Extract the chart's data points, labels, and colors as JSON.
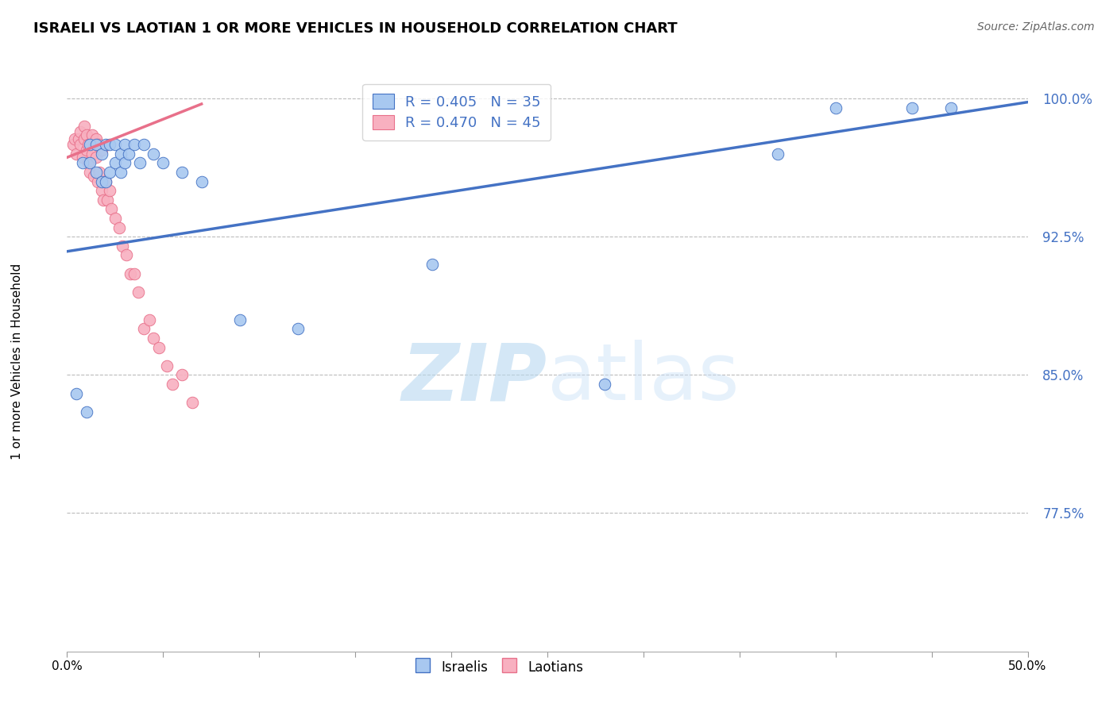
{
  "title": "ISRAELI VS LAOTIAN 1 OR MORE VEHICLES IN HOUSEHOLD CORRELATION CHART",
  "source": "Source: ZipAtlas.com",
  "ylabel": "1 or more Vehicles in Household",
  "xmin": 0.0,
  "xmax": 0.5,
  "ymin": 0.7,
  "ymax": 1.015,
  "yticks": [
    0.775,
    0.85,
    0.925,
    1.0
  ],
  "ytick_labels": [
    "77.5%",
    "85.0%",
    "92.5%",
    "100.0%"
  ],
  "xticks": [
    0.0,
    0.05,
    0.1,
    0.15,
    0.2,
    0.25,
    0.3,
    0.35,
    0.4,
    0.45,
    0.5
  ],
  "xtick_labels": [
    "0.0%",
    "",
    "",
    "",
    "",
    "",
    "",
    "",
    "",
    "",
    "50.0%"
  ],
  "watermark_zip": "ZIP",
  "watermark_atlas": "atlas",
  "legend_R_blue": "R = 0.405",
  "legend_N_blue": "N = 35",
  "legend_R_pink": "R = 0.470",
  "legend_N_pink": "N = 45",
  "blue_scatter_color": "#A8C8F0",
  "pink_scatter_color": "#F8B0C0",
  "line_blue": "#4472C4",
  "line_pink": "#E8708A",
  "israelis_x": [
    0.005,
    0.008,
    0.01,
    0.012,
    0.012,
    0.015,
    0.015,
    0.018,
    0.018,
    0.02,
    0.02,
    0.022,
    0.022,
    0.025,
    0.025,
    0.028,
    0.028,
    0.03,
    0.03,
    0.032,
    0.035,
    0.038,
    0.04,
    0.045,
    0.05,
    0.06,
    0.07,
    0.09,
    0.12,
    0.19,
    0.28,
    0.37,
    0.4,
    0.44,
    0.46
  ],
  "israelis_y": [
    0.84,
    0.965,
    0.83,
    0.965,
    0.975,
    0.96,
    0.975,
    0.955,
    0.97,
    0.955,
    0.975,
    0.96,
    0.975,
    0.965,
    0.975,
    0.96,
    0.97,
    0.965,
    0.975,
    0.97,
    0.975,
    0.965,
    0.975,
    0.97,
    0.965,
    0.96,
    0.955,
    0.88,
    0.875,
    0.91,
    0.845,
    0.97,
    0.995,
    0.995,
    0.995
  ],
  "laotians_x": [
    0.003,
    0.004,
    0.005,
    0.006,
    0.007,
    0.007,
    0.008,
    0.009,
    0.009,
    0.01,
    0.01,
    0.011,
    0.011,
    0.012,
    0.013,
    0.013,
    0.014,
    0.015,
    0.015,
    0.016,
    0.016,
    0.017,
    0.017,
    0.018,
    0.018,
    0.019,
    0.02,
    0.021,
    0.022,
    0.023,
    0.025,
    0.027,
    0.029,
    0.031,
    0.033,
    0.035,
    0.037,
    0.04,
    0.043,
    0.045,
    0.048,
    0.052,
    0.055,
    0.06,
    0.065
  ],
  "laotians_y": [
    0.975,
    0.978,
    0.97,
    0.978,
    0.975,
    0.982,
    0.968,
    0.978,
    0.985,
    0.972,
    0.98,
    0.965,
    0.975,
    0.96,
    0.97,
    0.98,
    0.958,
    0.968,
    0.978,
    0.955,
    0.975,
    0.96,
    0.975,
    0.95,
    0.972,
    0.945,
    0.955,
    0.945,
    0.95,
    0.94,
    0.935,
    0.93,
    0.92,
    0.915,
    0.905,
    0.905,
    0.895,
    0.875,
    0.88,
    0.87,
    0.865,
    0.855,
    0.845,
    0.85,
    0.835
  ],
  "blue_line_x0": 0.0,
  "blue_line_y0": 0.917,
  "blue_line_x1": 0.5,
  "blue_line_y1": 0.998,
  "pink_line_x0": 0.0,
  "pink_line_y0": 0.968,
  "pink_line_x1": 0.07,
  "pink_line_y1": 0.997
}
